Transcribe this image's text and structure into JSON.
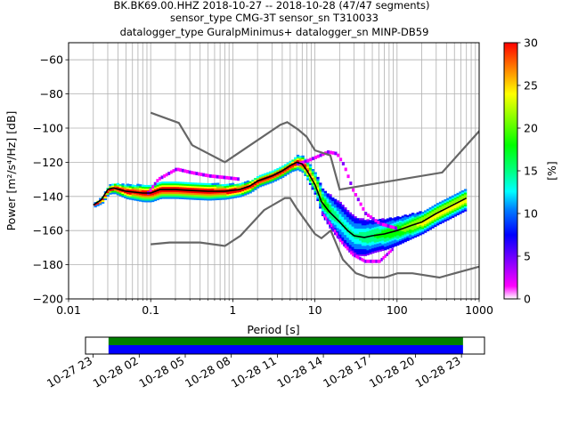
{
  "chart_data": {
    "type": "heatmap",
    "title_lines": [
      "BK.BK69.00.HHZ   2018-10-27 -- 2018-10-28  (47/47 segments)",
      "sensor_type CMG-3T sensor_sn T310033",
      "datalogger_type GuralpMinimus+ datalogger_sn MINP-DB59"
    ],
    "xlabel": "Period [s]",
    "ylabel": "Power [m²/s⁴/Hz] [dB]",
    "xscale": "log",
    "xlim": [
      0.01,
      1000
    ],
    "ylim": [
      -200,
      -50
    ],
    "grid": true,
    "x_ticks": [
      {
        "value": 0.01,
        "label": "0.01"
      },
      {
        "value": 0.1,
        "label": "0.1"
      },
      {
        "value": 1,
        "label": "1"
      },
      {
        "value": 10,
        "label": "10"
      },
      {
        "value": 100,
        "label": "100"
      },
      {
        "value": 1000,
        "label": "1000"
      }
    ],
    "y_ticks": [
      {
        "value": -60,
        "label": "−60"
      },
      {
        "value": -80,
        "label": "−80"
      },
      {
        "value": -100,
        "label": "−100"
      },
      {
        "value": -120,
        "label": "−120"
      },
      {
        "value": -140,
        "label": "−140"
      },
      {
        "value": -160,
        "label": "−160"
      },
      {
        "value": -180,
        "label": "−180"
      },
      {
        "value": -200,
        "label": "−200"
      }
    ],
    "colorbar": {
      "label": "[%]",
      "range": [
        0,
        30
      ],
      "ticks": [
        {
          "value": 0,
          "label": "0"
        },
        {
          "value": 5,
          "label": "5"
        },
        {
          "value": 10,
          "label": "10"
        },
        {
          "value": 15,
          "label": "15"
        },
        {
          "value": 20,
          "label": "20"
        },
        {
          "value": 25,
          "label": "25"
        },
        {
          "value": 30,
          "label": "30"
        }
      ]
    },
    "high_noise_model": [
      [
        0.1,
        -91
      ],
      [
        0.22,
        -97
      ],
      [
        0.32,
        -110
      ],
      [
        0.8,
        -120
      ],
      [
        3.8,
        -98
      ],
      [
        4.6,
        -96.5
      ],
      [
        6.3,
        -101
      ],
      [
        7.9,
        -105
      ],
      [
        10,
        -113
      ],
      [
        15.4,
        -116
      ],
      [
        20,
        -136
      ],
      [
        354.8,
        -126
      ],
      [
        10000,
        -48
      ]
    ],
    "low_noise_model": [
      [
        0.1,
        -168
      ],
      [
        0.17,
        -167
      ],
      [
        0.4,
        -167
      ],
      [
        0.8,
        -169
      ],
      [
        1.24,
        -163
      ],
      [
        2.4,
        -148
      ],
      [
        4.3,
        -141
      ],
      [
        5,
        -141
      ],
      [
        6,
        -147
      ],
      [
        10,
        -162
      ],
      [
        12,
        -164.5
      ],
      [
        15.6,
        -160
      ],
      [
        21.9,
        -177
      ],
      [
        31.6,
        -185
      ],
      [
        45,
        -187.5
      ],
      [
        70,
        -187.5
      ],
      [
        101,
        -185
      ],
      [
        154,
        -185
      ],
      [
        328,
        -187.5
      ],
      [
        600,
        -184
      ],
      [
        10000,
        -168
      ]
    ],
    "mode_curve": [
      [
        0.02,
        -145
      ],
      [
        0.025,
        -142
      ],
      [
        0.03,
        -136
      ],
      [
        0.035,
        -135
      ],
      [
        0.05,
        -137
      ],
      [
        0.08,
        -138
      ],
      [
        0.1,
        -138
      ],
      [
        0.13,
        -136
      ],
      [
        0.2,
        -136
      ],
      [
        0.3,
        -136.5
      ],
      [
        0.5,
        -137
      ],
      [
        0.8,
        -137
      ],
      [
        1.2,
        -136
      ],
      [
        1.6,
        -134
      ],
      [
        2,
        -131
      ],
      [
        3,
        -128
      ],
      [
        4,
        -125
      ],
      [
        5,
        -122
      ],
      [
        6,
        -120
      ],
      [
        7,
        -121
      ],
      [
        8,
        -125
      ],
      [
        10,
        -133
      ],
      [
        12,
        -143
      ],
      [
        15,
        -149
      ],
      [
        20,
        -155
      ],
      [
        25,
        -160
      ],
      [
        30,
        -163
      ],
      [
        40,
        -164
      ],
      [
        50,
        -163
      ],
      [
        70,
        -162
      ],
      [
        100,
        -160
      ],
      [
        150,
        -157
      ],
      [
        200,
        -155
      ],
      [
        300,
        -150
      ],
      [
        400,
        -147
      ],
      [
        700,
        -141
      ]
    ],
    "density_spread": [
      [
        0.02,
        0.6
      ],
      [
        0.03,
        1.5
      ],
      [
        0.05,
        2.5
      ],
      [
        0.08,
        3
      ],
      [
        0.1,
        3
      ],
      [
        0.2,
        3
      ],
      [
        0.5,
        3
      ],
      [
        1,
        2.5
      ],
      [
        2,
        2
      ],
      [
        5,
        2
      ],
      [
        10,
        4
      ],
      [
        15,
        6
      ],
      [
        20,
        7
      ],
      [
        30,
        7
      ],
      [
        50,
        6
      ],
      [
        100,
        5
      ],
      [
        200,
        4
      ],
      [
        400,
        4
      ],
      [
        700,
        4
      ]
    ],
    "secondary_density": [
      {
        "points": [
          [
            0.09,
            -138
          ],
          [
            0.12,
            -130
          ],
          [
            0.2,
            -124
          ],
          [
            0.3,
            -126
          ],
          [
            0.5,
            -128
          ],
          [
            0.8,
            -129
          ],
          [
            1.2,
            -130
          ]
        ]
      },
      {
        "points": [
          [
            6,
            -121
          ],
          [
            8,
            -119
          ],
          [
            10,
            -117
          ],
          [
            14,
            -114
          ],
          [
            18,
            -115
          ],
          [
            22,
            -122
          ],
          [
            28,
            -136
          ],
          [
            40,
            -150
          ],
          [
            60,
            -156
          ],
          [
            100,
            -159
          ]
        ]
      },
      {
        "points": [
          [
            12,
            -150
          ],
          [
            16,
            -158
          ],
          [
            20,
            -166
          ],
          [
            28,
            -174
          ],
          [
            40,
            -178
          ],
          [
            60,
            -178
          ],
          [
            90,
            -170
          ]
        ]
      }
    ]
  },
  "time_axis": {
    "ticks": [
      {
        "value": 0,
        "label": "10-27 23"
      },
      {
        "value": 3,
        "label": "10-28 02"
      },
      {
        "value": 6,
        "label": "10-28 05"
      },
      {
        "value": 9,
        "label": "10-28 08"
      },
      {
        "value": 12,
        "label": "10-28 11"
      },
      {
        "value": 15,
        "label": "10-28 14"
      },
      {
        "value": 18,
        "label": "10-28 17"
      },
      {
        "value": 21,
        "label": "10-28 20"
      },
      {
        "value": 24,
        "label": "10-28 23"
      }
    ],
    "range_hours": [
      -0.5,
      25.5
    ],
    "coverage_hours": [
      1,
      24.1
    ],
    "coverage_colors": [
      "#008000",
      "#0000ff"
    ]
  }
}
